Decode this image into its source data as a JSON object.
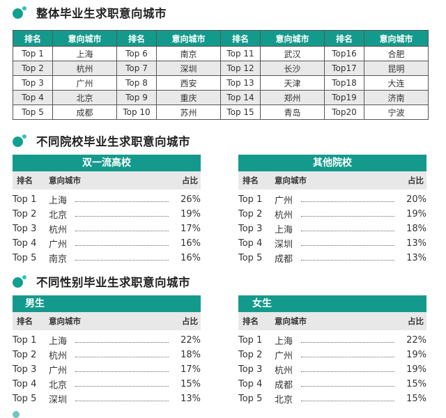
{
  "section1": {
    "title": "整体毕业生求职意向城市",
    "headers": [
      "排名",
      "意向城市",
      "排名",
      "意向城市",
      "排名",
      "意向城市",
      "排名",
      "意向城市"
    ],
    "rows": [
      [
        "Top 1",
        "上海",
        "Top 6",
        "南京",
        "Top 11",
        "武汉",
        "Top16",
        "合肥"
      ],
      [
        "Top 2",
        "杭州",
        "Top 7",
        "深圳",
        "Top 12",
        "长沙",
        "Top17",
        "昆明"
      ],
      [
        "Top 3",
        "广州",
        "Top 8",
        "西安",
        "Top 13",
        "天津",
        "Top18",
        "大连"
      ],
      [
        "Top 4",
        "北京",
        "Top 9",
        "重庆",
        "Top 14",
        "郑州",
        "Top19",
        "济南"
      ],
      [
        "Top 5",
        "成都",
        "Top 10",
        "苏州",
        "Top 15",
        "青岛",
        "Top20",
        "宁波"
      ]
    ]
  },
  "section2": {
    "title": "不同院校毕业生求职意向城市",
    "panels": [
      {
        "title": "双一流高校",
        "cols": [
          "排名",
          "意向城市",
          "占比"
        ],
        "rows": [
          [
            "Top 1",
            "上海",
            "26%"
          ],
          [
            "Top 2",
            "北京",
            "19%"
          ],
          [
            "Top 3",
            "杭州",
            "17%"
          ],
          [
            "Top 4",
            "广州",
            "16%"
          ],
          [
            "Top 5",
            "南京",
            "16%"
          ]
        ]
      },
      {
        "title": "其他院校",
        "cols": [
          "排名",
          "意向城市",
          "占比"
        ],
        "rows": [
          [
            "Top 1",
            "广州",
            "20%"
          ],
          [
            "Top 2",
            "杭州",
            "19%"
          ],
          [
            "Top 3",
            "上海",
            "18%"
          ],
          [
            "Top 4",
            "深圳",
            "13%"
          ],
          [
            "Top 5",
            "成都",
            "13%"
          ]
        ]
      }
    ]
  },
  "section3": {
    "title": "不同性别毕业生求职意向城市",
    "panels": [
      {
        "title": "男生",
        "cols": [
          "排名",
          "意向城市",
          "占比"
        ],
        "rows": [
          [
            "Top 1",
            "上海",
            "22%"
          ],
          [
            "Top 2",
            "杭州",
            "18%"
          ],
          [
            "Top 3",
            "广州",
            "17%"
          ],
          [
            "Top 4",
            "北京",
            "15%"
          ],
          [
            "Top 5",
            "深圳",
            "13%"
          ]
        ]
      },
      {
        "title": "女生",
        "cols": [
          "排名",
          "意向城市",
          "占比"
        ],
        "rows": [
          [
            "Top 1",
            "上海",
            "22%"
          ],
          [
            "Top 2",
            "广州",
            "19%"
          ],
          [
            "Top 3",
            "杭州",
            "19%"
          ],
          [
            "Top 4",
            "成都",
            "15%"
          ],
          [
            "Top 5",
            "北京",
            "15%"
          ]
        ]
      }
    ]
  },
  "colors": {
    "accent": "#149a8c",
    "dot_light": "#2fc4b1",
    "header_gray": "#e8e8e8"
  }
}
